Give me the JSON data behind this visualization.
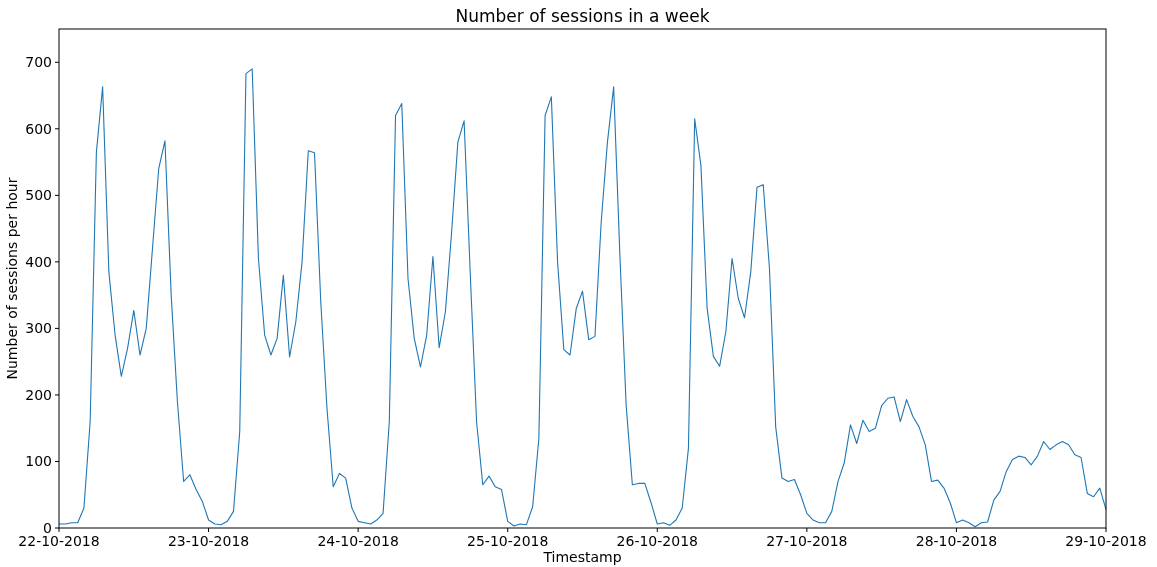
{
  "chart_data": {
    "type": "line",
    "title": "Number of sessions in a week",
    "xlabel": "Timestamp",
    "ylabel": "Number of sessions per hour",
    "x": [
      "2018-10-22T00:00",
      "2018-10-22T01:00",
      "2018-10-22T02:00",
      "2018-10-22T03:00",
      "2018-10-22T04:00",
      "2018-10-22T05:00",
      "2018-10-22T06:00",
      "2018-10-22T07:00",
      "2018-10-22T08:00",
      "2018-10-22T09:00",
      "2018-10-22T10:00",
      "2018-10-22T11:00",
      "2018-10-22T12:00",
      "2018-10-22T13:00",
      "2018-10-22T14:00",
      "2018-10-22T15:00",
      "2018-10-22T16:00",
      "2018-10-22T17:00",
      "2018-10-22T18:00",
      "2018-10-22T19:00",
      "2018-10-22T20:00",
      "2018-10-22T21:00",
      "2018-10-22T22:00",
      "2018-10-22T23:00",
      "2018-10-23T00:00",
      "2018-10-23T01:00",
      "2018-10-23T02:00",
      "2018-10-23T03:00",
      "2018-10-23T04:00",
      "2018-10-23T05:00",
      "2018-10-23T06:00",
      "2018-10-23T07:00",
      "2018-10-23T08:00",
      "2018-10-23T09:00",
      "2018-10-23T10:00",
      "2018-10-23T11:00",
      "2018-10-23T12:00",
      "2018-10-23T13:00",
      "2018-10-23T14:00",
      "2018-10-23T15:00",
      "2018-10-23T16:00",
      "2018-10-23T17:00",
      "2018-10-23T18:00",
      "2018-10-23T19:00",
      "2018-10-23T20:00",
      "2018-10-23T21:00",
      "2018-10-23T22:00",
      "2018-10-23T23:00",
      "2018-10-24T00:00",
      "2018-10-24T01:00",
      "2018-10-24T02:00",
      "2018-10-24T03:00",
      "2018-10-24T04:00",
      "2018-10-24T05:00",
      "2018-10-24T06:00",
      "2018-10-24T07:00",
      "2018-10-24T08:00",
      "2018-10-24T09:00",
      "2018-10-24T10:00",
      "2018-10-24T11:00",
      "2018-10-24T12:00",
      "2018-10-24T13:00",
      "2018-10-24T14:00",
      "2018-10-24T15:00",
      "2018-10-24T16:00",
      "2018-10-24T17:00",
      "2018-10-24T18:00",
      "2018-10-24T19:00",
      "2018-10-24T20:00",
      "2018-10-24T21:00",
      "2018-10-24T22:00",
      "2018-10-24T23:00",
      "2018-10-25T00:00",
      "2018-10-25T01:00",
      "2018-10-25T02:00",
      "2018-10-25T03:00",
      "2018-10-25T04:00",
      "2018-10-25T05:00",
      "2018-10-25T06:00",
      "2018-10-25T07:00",
      "2018-10-25T08:00",
      "2018-10-25T09:00",
      "2018-10-25T10:00",
      "2018-10-25T11:00",
      "2018-10-25T12:00",
      "2018-10-25T13:00",
      "2018-10-25T14:00",
      "2018-10-25T15:00",
      "2018-10-25T16:00",
      "2018-10-25T17:00",
      "2018-10-25T18:00",
      "2018-10-25T19:00",
      "2018-10-25T20:00",
      "2018-10-25T21:00",
      "2018-10-25T22:00",
      "2018-10-25T23:00",
      "2018-10-26T00:00",
      "2018-10-26T01:00",
      "2018-10-26T02:00",
      "2018-10-26T03:00",
      "2018-10-26T04:00",
      "2018-10-26T05:00",
      "2018-10-26T06:00",
      "2018-10-26T07:00",
      "2018-10-26T08:00",
      "2018-10-26T09:00",
      "2018-10-26T10:00",
      "2018-10-26T11:00",
      "2018-10-26T12:00",
      "2018-10-26T13:00",
      "2018-10-26T14:00",
      "2018-10-26T15:00",
      "2018-10-26T16:00",
      "2018-10-26T17:00",
      "2018-10-26T18:00",
      "2018-10-26T19:00",
      "2018-10-26T20:00",
      "2018-10-26T21:00",
      "2018-10-26T22:00",
      "2018-10-26T23:00",
      "2018-10-27T00:00",
      "2018-10-27T01:00",
      "2018-10-27T02:00",
      "2018-10-27T03:00",
      "2018-10-27T04:00",
      "2018-10-27T05:00",
      "2018-10-27T06:00",
      "2018-10-27T07:00",
      "2018-10-27T08:00",
      "2018-10-27T09:00",
      "2018-10-27T10:00",
      "2018-10-27T11:00",
      "2018-10-27T12:00",
      "2018-10-27T13:00",
      "2018-10-27T14:00",
      "2018-10-27T15:00",
      "2018-10-27T16:00",
      "2018-10-27T17:00",
      "2018-10-27T18:00",
      "2018-10-27T19:00",
      "2018-10-27T20:00",
      "2018-10-27T21:00",
      "2018-10-27T22:00",
      "2018-10-27T23:00",
      "2018-10-28T00:00",
      "2018-10-28T01:00",
      "2018-10-28T02:00",
      "2018-10-28T03:00",
      "2018-10-28T04:00",
      "2018-10-28T05:00",
      "2018-10-28T06:00",
      "2018-10-28T07:00",
      "2018-10-28T08:00",
      "2018-10-28T09:00",
      "2018-10-28T10:00",
      "2018-10-28T11:00",
      "2018-10-28T12:00",
      "2018-10-28T13:00",
      "2018-10-28T14:00",
      "2018-10-28T15:00",
      "2018-10-28T16:00",
      "2018-10-28T17:00",
      "2018-10-28T18:00",
      "2018-10-28T19:00",
      "2018-10-28T20:00",
      "2018-10-28T21:00",
      "2018-10-28T22:00",
      "2018-10-28T23:00",
      "2018-10-29T00:00"
    ],
    "series": [
      {
        "color": "#1f77b4",
        "values": [
          6,
          6,
          8,
          8,
          30,
          160,
          565,
          663,
          385,
          290,
          228,
          270,
          327,
          260,
          300,
          420,
          540,
          582,
          350,
          190,
          70,
          80,
          58,
          40,
          12,
          6,
          5,
          10,
          25,
          145,
          683,
          690,
          405,
          290,
          260,
          285,
          380,
          257,
          310,
          400,
          567,
          564,
          340,
          180,
          62,
          82,
          75,
          30,
          10,
          8,
          6,
          12,
          22,
          160,
          620,
          638,
          375,
          285,
          242,
          290,
          408,
          271,
          325,
          445,
          580,
          612,
          380,
          160,
          65,
          78,
          62,
          58,
          10,
          3,
          6,
          5,
          32,
          135,
          620,
          648,
          400,
          268,
          260,
          330,
          356,
          283,
          288,
          460,
          580,
          663,
          410,
          185,
          65,
          67,
          67,
          38,
          6,
          8,
          4,
          12,
          30,
          120,
          615,
          545,
          330,
          258,
          243,
          295,
          405,
          345,
          316,
          385,
          512,
          516,
          390,
          152,
          75,
          70,
          73,
          50,
          22,
          12,
          8,
          8,
          25,
          70,
          98,
          155,
          127,
          162,
          145,
          150,
          184,
          195,
          197,
          160,
          193,
          168,
          152,
          125,
          70,
          72,
          60,
          38,
          8,
          12,
          8,
          2,
          8,
          9,
          42,
          55,
          85,
          103,
          108,
          106,
          95,
          108,
          130,
          118,
          125,
          130,
          125,
          110,
          106,
          52,
          47,
          60,
          28
        ]
      }
    ],
    "xlim": [
      "2018-10-22",
      "2018-10-29"
    ],
    "xticks": [
      {
        "value": "2018-10-22",
        "label": "22-10-2018"
      },
      {
        "value": "2018-10-23",
        "label": "23-10-2018"
      },
      {
        "value": "2018-10-24",
        "label": "24-10-2018"
      },
      {
        "value": "2018-10-25",
        "label": "25-10-2018"
      },
      {
        "value": "2018-10-26",
        "label": "26-10-2018"
      },
      {
        "value": "2018-10-27",
        "label": "27-10-2018"
      },
      {
        "value": "2018-10-28",
        "label": "28-10-2018"
      },
      {
        "value": "2018-10-29",
        "label": "29-10-2018"
      }
    ],
    "ylim": [
      0,
      750
    ],
    "yticks": [
      0,
      100,
      200,
      300,
      400,
      500,
      600,
      700
    ],
    "grid": false,
    "marker": "none",
    "line_style": "solid"
  }
}
